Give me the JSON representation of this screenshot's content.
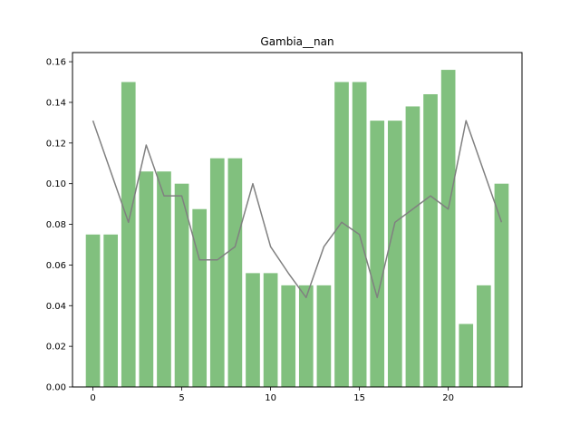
{
  "chart_data": {
    "type": "bar",
    "title": "Gambia__nan",
    "xlabel": "",
    "ylabel": "",
    "x": [
      0,
      1,
      2,
      3,
      4,
      5,
      6,
      7,
      8,
      9,
      10,
      11,
      12,
      13,
      14,
      15,
      16,
      17,
      18,
      19,
      20,
      21,
      22,
      23
    ],
    "series": [
      {
        "kind": "bar",
        "color": "#81c07e",
        "values": [
          0.075,
          0.075,
          0.15,
          0.106,
          0.106,
          0.1,
          0.0875,
          0.1125,
          0.1125,
          0.056,
          0.056,
          0.05,
          0.05,
          0.05,
          0.15,
          0.15,
          0.131,
          0.131,
          0.138,
          0.144,
          0.156,
          0.031,
          0.05,
          0.1
        ]
      },
      {
        "kind": "line",
        "color": "#808080",
        "values": [
          0.131,
          0.106,
          0.081,
          0.119,
          0.094,
          0.094,
          0.0625,
          0.0625,
          0.069,
          0.1,
          0.069,
          0.056,
          0.044,
          0.069,
          0.081,
          0.075,
          0.044,
          0.081,
          0.0875,
          0.094,
          0.0875,
          0.131,
          0.106,
          0.081
        ]
      }
    ],
    "xlim": [
      -1.15,
      24.15
    ],
    "ylim": [
      0,
      0.1645
    ],
    "xticks": [
      0,
      5,
      10,
      15,
      20
    ],
    "xtick_labels": [
      "0",
      "5",
      "10",
      "15",
      "20"
    ],
    "yticks": [
      0.0,
      0.02,
      0.04,
      0.06,
      0.08,
      0.1,
      0.12,
      0.14,
      0.16
    ],
    "ytick_labels": [
      "0.00",
      "0.02",
      "0.04",
      "0.06",
      "0.08",
      "0.10",
      "0.12",
      "0.14",
      "0.16"
    ],
    "grid": false,
    "legend": "none"
  }
}
